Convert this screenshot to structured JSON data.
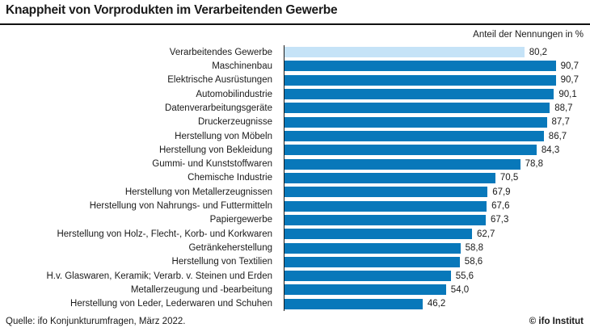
{
  "header": {
    "unit_label": "Anteil der Nennungen in %"
  },
  "footer": {
    "source": "Quelle: ifo Konjunkturumfragen, März 2022.",
    "copyright": "© ifo Institut"
  },
  "colors": {
    "bar": "#0878ba",
    "highlight_bar": "#c5e3f7",
    "axis": "#1a1a1a",
    "text": "#1a1a1a"
  },
  "chart_data": {
    "type": "bar",
    "orientation": "horizontal",
    "title": "Knappheit von Vorprodukten im Verarbeitenden Gewerbe",
    "xlabel": "Anteil der Nennungen in %",
    "xlim": [
      0,
      100
    ],
    "grid": false,
    "legend": false,
    "highlight_index": 0,
    "categories": [
      "Verarbeitendes Gewerbe",
      "Maschinenbau",
      "Elektrische Ausrüstungen",
      "Automobilindustrie",
      "Datenverarbeitungsgeräte",
      "Druckerzeugnisse",
      "Herstellung von Möbeln",
      "Herstellung von Bekleidung",
      "Gummi- und Kunststoffwaren",
      "Chemische Industrie",
      "Herstellung von Metallerzeugnissen",
      "Herstellung von Nahrungs- und Futtermitteln",
      "Papiergewerbe",
      "Herstellung von Holz-, Flecht-, Korb- und Korkwaren",
      "Getränkeherstellung",
      "Herstellung von Textilien",
      "H.v. Glaswaren, Keramik; Verarb. v. Steinen und Erden",
      "Metallerzeugung und -bearbeitung",
      "Herstellung von Leder, Lederwaren und Schuhen"
    ],
    "values": [
      80.2,
      90.7,
      90.7,
      90.1,
      88.7,
      87.7,
      86.7,
      84.3,
      78.8,
      70.5,
      67.9,
      67.6,
      67.3,
      62.7,
      58.8,
      58.6,
      55.6,
      54.0,
      46.2
    ],
    "value_labels": [
      "80,2",
      "90,7",
      "90,7",
      "90,1",
      "88,7",
      "87,7",
      "86,7",
      "84,3",
      "78,8",
      "70,5",
      "67,9",
      "67,6",
      "67,3",
      "62,7",
      "58,8",
      "58,6",
      "55,6",
      "54,0",
      "46,2"
    ]
  }
}
